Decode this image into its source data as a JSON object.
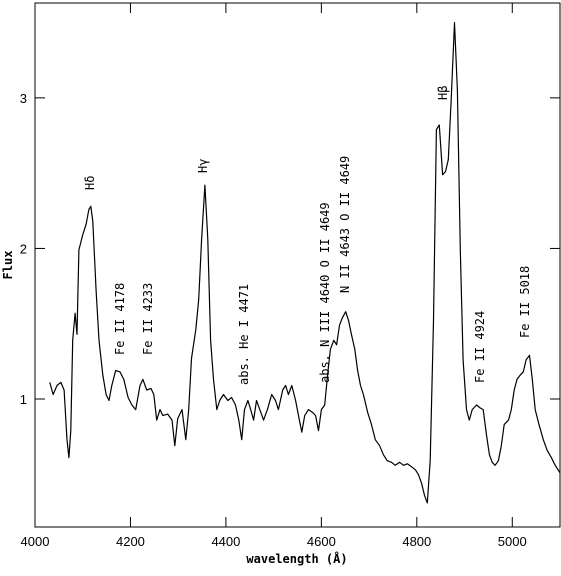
{
  "chart_data": {
    "type": "line",
    "x_label": "wavelength (Å)",
    "y_label": "Flux",
    "color": "#000000",
    "xlim": [
      4000,
      5100
    ],
    "xticks": [
      4000,
      4200,
      4400,
      4600,
      4800,
      5000
    ],
    "ylim": [
      0.15,
      3.63
    ],
    "yticks": [
      1,
      2,
      3
    ],
    "annotations": [
      "Hδ",
      "Fe II 4178",
      "Fe II 4233",
      "Hγ",
      "abs. He I 4471",
      "abs. N III 4640 O II 4649",
      "N II 4643 O II 4649",
      "Hβ",
      "Fe II 4924",
      "Fe II 5018"
    ],
    "x": [
      4031,
      4038,
      4046,
      4054,
      4061,
      4067,
      4071,
      4075,
      4079,
      4084,
      4088,
      4092,
      4100,
      4107,
      4113,
      4117,
      4121,
      4128,
      4134,
      4142,
      4149,
      4155,
      4161,
      4169,
      4178,
      4186,
      4195,
      4203,
      4211,
      4220,
      4226,
      4234,
      4243,
      4249,
      4255,
      4262,
      4268,
      4278,
      4287,
      4293,
      4299,
      4308,
      4316,
      4322,
      4328,
      4337,
      4343,
      4349,
      4356,
      4362,
      4368,
      4374,
      4381,
      4387,
      4395,
      4404,
      4412,
      4420,
      4427,
      4433,
      4439,
      4446,
      4452,
      4458,
      4464,
      4471,
      4479,
      4487,
      4496,
      4504,
      4510,
      4519,
      4525,
      4531,
      4538,
      4546,
      4552,
      4559,
      4565,
      4573,
      4582,
      4588,
      4594,
      4600,
      4607,
      4613,
      4619,
      4626,
      4632,
      4638,
      4644,
      4651,
      4657,
      4663,
      4670,
      4676,
      4682,
      4688,
      4697,
      4705,
      4713,
      4722,
      4730,
      4738,
      4747,
      4755,
      4764,
      4772,
      4780,
      4789,
      4797,
      4803,
      4810,
      4816,
      4822,
      4828,
      4835,
      4841,
      4847,
      4854,
      4860,
      4866,
      4872,
      4879,
      4885,
      4891,
      4897,
      4904,
      4910,
      4916,
      4925,
      4933,
      4939,
      4946,
      4952,
      4958,
      4964,
      4971,
      4977,
      4983,
      4992,
      4998,
      5004,
      5010,
      5017,
      5023,
      5029,
      5036,
      5042,
      5048,
      5056,
      5065,
      5073,
      5082,
      5090,
      5100
    ],
    "values": [
      1.11,
      1.03,
      1.09,
      1.11,
      1.06,
      0.73,
      0.61,
      0.79,
      1.39,
      1.57,
      1.43,
      1.99,
      2.09,
      2.16,
      2.26,
      2.28,
      2.18,
      1.72,
      1.39,
      1.16,
      1.03,
      0.99,
      1.09,
      1.19,
      1.18,
      1.13,
      1.01,
      0.96,
      0.93,
      1.09,
      1.13,
      1.06,
      1.07,
      1.03,
      0.86,
      0.93,
      0.89,
      0.9,
      0.86,
      0.69,
      0.87,
      0.93,
      0.73,
      0.93,
      1.27,
      1.46,
      1.66,
      2.06,
      2.42,
      2.06,
      1.39,
      1.13,
      0.93,
      0.99,
      1.03,
      0.99,
      1.01,
      0.96,
      0.86,
      0.73,
      0.93,
      0.99,
      0.93,
      0.86,
      0.99,
      0.93,
      0.86,
      0.93,
      1.03,
      0.99,
      0.93,
      1.06,
      1.09,
      1.03,
      1.09,
      0.99,
      0.89,
      0.78,
      0.89,
      0.93,
      0.91,
      0.89,
      0.79,
      0.93,
      0.96,
      1.16,
      1.33,
      1.39,
      1.36,
      1.49,
      1.54,
      1.58,
      1.52,
      1.43,
      1.33,
      1.19,
      1.09,
      1.03,
      0.91,
      0.83,
      0.73,
      0.69,
      0.63,
      0.59,
      0.58,
      0.56,
      0.58,
      0.56,
      0.57,
      0.55,
      0.53,
      0.5,
      0.44,
      0.36,
      0.31,
      0.59,
      1.52,
      2.79,
      2.82,
      2.49,
      2.51,
      2.59,
      2.99,
      3.5,
      3.05,
      1.99,
      1.26,
      0.93,
      0.86,
      0.93,
      0.96,
      0.94,
      0.93,
      0.76,
      0.63,
      0.58,
      0.56,
      0.59,
      0.69,
      0.83,
      0.86,
      0.93,
      1.06,
      1.13,
      1.16,
      1.18,
      1.26,
      1.29,
      1.13,
      0.93,
      0.83,
      0.73,
      0.66,
      0.61,
      0.56,
      0.51
    ]
  }
}
